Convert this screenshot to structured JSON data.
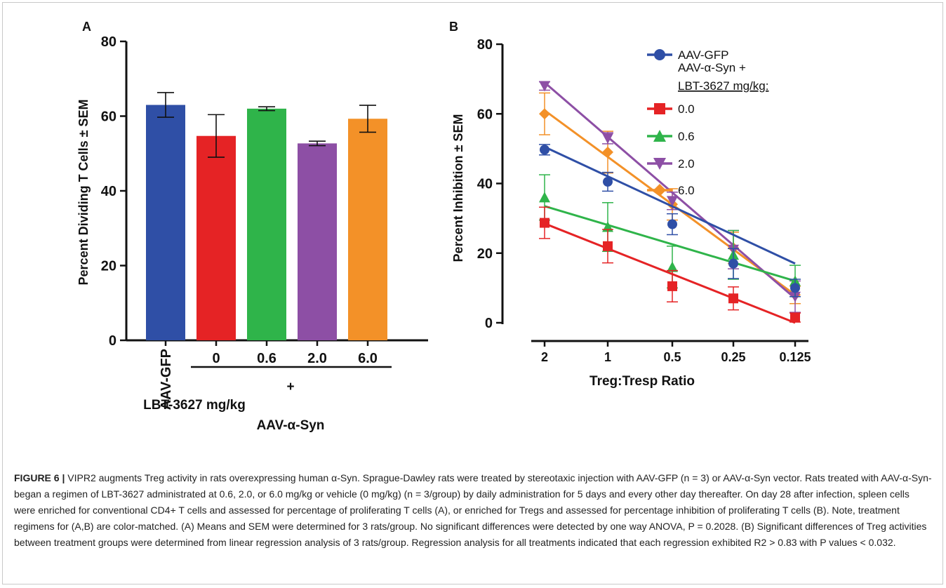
{
  "figure": {
    "caption_label": "FIGURE 6 |",
    "caption_text": "VIPR2 augments Treg activity in rats overexpressing human α-Syn. Sprague-Dawley rats were treated by stereotaxic injection with AAV-GFP (n = 3) or AAV-α-Syn vector. Rats treated with AAV-α-Syn-began a regimen of LBT-3627 administrated at 0.6, 2.0, or 6.0 mg/kg or vehicle (0 mg/kg) (n = 3/group) by daily administration for 5 days and every other day thereafter. On day 28 after infection, spleen cells were enriched for conventional CD4+ T cells and assessed for percentage of proliferating T cells (A), or enriched for Tregs and assessed for percentage inhibition of proliferating T cells (B). Note, treatment regimens for (A,B) are color-matched. (A) Means and SEM were determined for 3 rats/group. No significant differences were detected by one way ANOVA, P = 0.2028. (B) Significant differences of Treg activities between treatment groups were determined from linear regression analysis of 3 rats/group. Regression analysis for all treatments indicated that each regression exhibited R2 > 0.83 with P values < 0.032."
  },
  "colors": {
    "blue": "#2f4fa6",
    "red": "#e52325",
    "green": "#2fb44a",
    "purple": "#8d4fa5",
    "orange": "#f39128",
    "axis": "#111111"
  },
  "chart_data": [
    {
      "panel": "A",
      "type": "bar",
      "ylabel": "Percent Dividing T Cells ± SEM",
      "ylim": [
        0,
        80
      ],
      "yticks": [
        "0",
        "20",
        "40",
        "60",
        "80"
      ],
      "categories": [
        "AAV-GFP",
        "0",
        "0.6",
        "2.0",
        "6.0"
      ],
      "values": [
        63,
        54.7,
        62,
        52.7,
        59.3
      ],
      "sem": [
        3.3,
        5.7,
        0.5,
        0.6,
        3.6
      ],
      "bar_colors": [
        "#2f4fa6",
        "#e52325",
        "#2fb44a",
        "#8d4fa5",
        "#f39128"
      ],
      "group_label_1": "LBT-3627 mg/kg",
      "group_label_plus": "+",
      "group_label_2": "AAV-α-Syn"
    },
    {
      "panel": "B",
      "type": "line",
      "xlabel": "Treg:Tresp Ratio",
      "ylabel": "Percent Inhibition ± SEM",
      "ylim": [
        0,
        80
      ],
      "yticks": [
        "0",
        "20",
        "40",
        "60",
        "80"
      ],
      "categories": [
        "2",
        "1",
        "0.5",
        "0.25",
        "0.125"
      ],
      "legend_title_1": "AAV-α-Syn +",
      "legend_title_2": "LBT-3627 mg/kg:",
      "series": [
        {
          "name": "AAV-GFP",
          "marker": "circle",
          "color": "#2f4fa6",
          "values": [
            49.7,
            40.5,
            28.3,
            17,
            10
          ],
          "sem": [
            1.5,
            2.7,
            3,
            4.3,
            2.5
          ],
          "fit": [
            50.5,
            17
          ]
        },
        {
          "name": "0.0",
          "marker": "square",
          "color": "#e52325",
          "values": [
            28.7,
            22,
            10.5,
            7,
            1.5
          ],
          "sem": [
            4.5,
            4.8,
            4.5,
            3.3,
            1.3
          ],
          "fit": [
            28.5,
            0
          ]
        },
        {
          "name": "0.6",
          "marker": "triangle-up",
          "color": "#2fb44a",
          "values": [
            36,
            27.5,
            16,
            19.5,
            12
          ],
          "sem": [
            6.5,
            7,
            6,
            7,
            4.5
          ],
          "fit": [
            33.5,
            12
          ]
        },
        {
          "name": "2.0",
          "marker": "triangle-down",
          "color": "#8d4fa5",
          "values": [
            68,
            53,
            35,
            21,
            7.5
          ],
          "sem": [
            1.2,
            1.6,
            2.5,
            5.5,
            4.5
          ],
          "fit": [
            69,
            7
          ]
        },
        {
          "name": "6.0",
          "marker": "diamond",
          "color": "#f39128",
          "values": [
            60,
            49,
            34,
            21.5,
            8
          ],
          "sem": [
            6,
            6,
            4.5,
            4.5,
            2.5
          ],
          "fit": [
            61,
            8
          ]
        }
      ]
    }
  ]
}
